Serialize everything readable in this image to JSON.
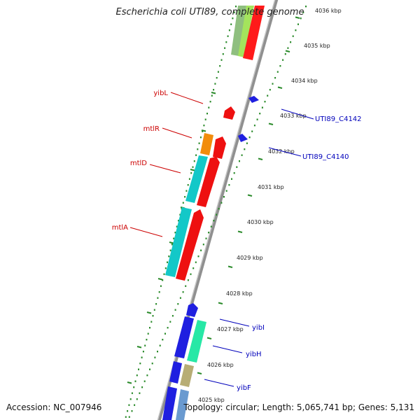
{
  "title": "Escherichia coli UTI89, complete genome",
  "accession": "Accession: NC_007946",
  "topology": "Topology: circular; Length: 5,065,741 bp; Genes: 5,131",
  "colors": {
    "backbone": "#909090",
    "tick_inner": "#2a8a2a",
    "tick_outer": "#2a8a2a",
    "label_red": "#cc0000",
    "label_blue": "#0000bb"
  },
  "ruler": [
    {
      "label": "4036 kbp"
    },
    {
      "label": "4035 kbp"
    },
    {
      "label": "4034 kbp"
    },
    {
      "label": "4033 kbp"
    },
    {
      "label": "4032 kbp"
    },
    {
      "label": "4031 kbp"
    },
    {
      "label": "4030 kbp"
    },
    {
      "label": "4029 kbp"
    },
    {
      "label": "4028 kbp"
    },
    {
      "label": "4027 kbp"
    },
    {
      "label": "4026 kbp"
    },
    {
      "label": "4025 kbp"
    }
  ],
  "gene_labels": [
    {
      "name": "yibL"
    },
    {
      "name": "mtlR"
    },
    {
      "name": "mtlD"
    },
    {
      "name": "mtlA"
    },
    {
      "name": "UTI89_C4142"
    },
    {
      "name": "UTI89_C4140"
    },
    {
      "name": "yibI"
    },
    {
      "name": "yibH"
    },
    {
      "name": "yibF"
    }
  ]
}
